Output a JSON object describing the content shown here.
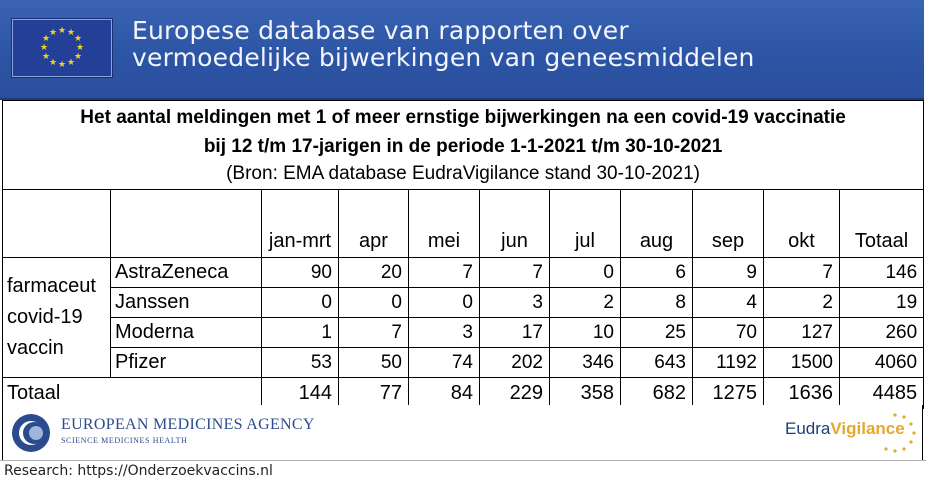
{
  "banner": {
    "line1": "Europese database van rapporten over",
    "line2": "vermoedelijke bijwerkingen van geneesmiddelen",
    "flag_icon": "eu-flag-icon",
    "bg_color": "#2d55a5"
  },
  "table": {
    "title_line1": "Het aantal meldingen met 1 of meer ernstige bijwerkingen na een covid-19 vaccinatie",
    "title_line2": "bij 12 t/m 17-jarigen in de periode 1-1-2021 t/m 30-10-2021",
    "title_line3": "(Bron: EMA database EudraVigilance stand 30-10-2021)",
    "columns": [
      "jan-mrt",
      "apr",
      "mei",
      "jun",
      "jul",
      "aug",
      "sep",
      "okt",
      "Totaal"
    ],
    "group_label": [
      "farmaceut",
      "covid-19",
      "vaccin"
    ],
    "rows": [
      {
        "name": "AstraZeneca",
        "values": [
          "90",
          "20",
          "7",
          "7",
          "0",
          "6",
          "9",
          "7",
          "146"
        ]
      },
      {
        "name": "Janssen",
        "values": [
          "0",
          "0",
          "0",
          "3",
          "2",
          "8",
          "4",
          "2",
          "19"
        ]
      },
      {
        "name": "Moderna",
        "values": [
          "1",
          "7",
          "3",
          "17",
          "10",
          "25",
          "70",
          "127",
          "260"
        ]
      },
      {
        "name": "Pfizer",
        "values": [
          "53",
          "50",
          "74",
          "202",
          "346",
          "643",
          "1192",
          "1500",
          "4060"
        ]
      }
    ],
    "total": {
      "label": "Totaal",
      "values": [
        "144",
        "77",
        "84",
        "229",
        "358",
        "682",
        "1275",
        "1636",
        "4485"
      ]
    }
  },
  "logos": {
    "ema_name": "EUROPEAN MEDICINES AGENCY",
    "ema_tagline": "SCIENCE MEDICINES HEALTH",
    "eudra_prefix": "Eudra",
    "eudra_suffix": "Vigilance"
  },
  "footer": {
    "text": "Research: https://Onderzoekvaccins.nl"
  }
}
